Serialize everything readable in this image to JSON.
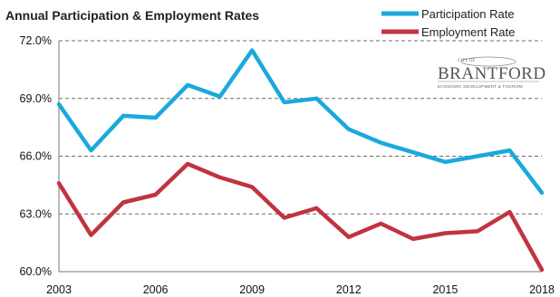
{
  "chart_data": {
    "type": "line",
    "title": "Annual Participation & Employment Rates",
    "x": [
      2003,
      2004,
      2005,
      2006,
      2007,
      2008,
      2009,
      2010,
      2011,
      2012,
      2013,
      2014,
      2015,
      2016,
      2017,
      2018
    ],
    "x_tick_labels": [
      "2003",
      "2006",
      "2009",
      "2012",
      "2015",
      "2018"
    ],
    "y_tick_labels": [
      "60.0%",
      "63.0%",
      "66.0%",
      "69.0%",
      "72.0%"
    ],
    "ylim": [
      60.0,
      72.0
    ],
    "grid": "horizontal dashed",
    "legend_position": "top-right",
    "series": [
      {
        "name": "Participation Rate",
        "color": "#1aa9dd",
        "values": [
          68.7,
          66.3,
          68.1,
          68.0,
          69.7,
          69.1,
          71.5,
          68.8,
          69.0,
          67.4,
          66.7,
          66.2,
          65.7,
          66.0,
          66.3,
          64.1
        ]
      },
      {
        "name": "Employment Rate",
        "color": "#c0343f",
        "values": [
          64.6,
          61.9,
          63.6,
          64.0,
          65.6,
          64.9,
          64.4,
          62.8,
          63.3,
          61.8,
          62.5,
          61.7,
          62.0,
          62.1,
          63.1,
          60.1
        ]
      }
    ]
  },
  "logo": {
    "top_text": "CITY OF",
    "name": "BRANTFORD",
    "tagline": "ECONOMIC DEVELOPMENT & TOURISM"
  }
}
